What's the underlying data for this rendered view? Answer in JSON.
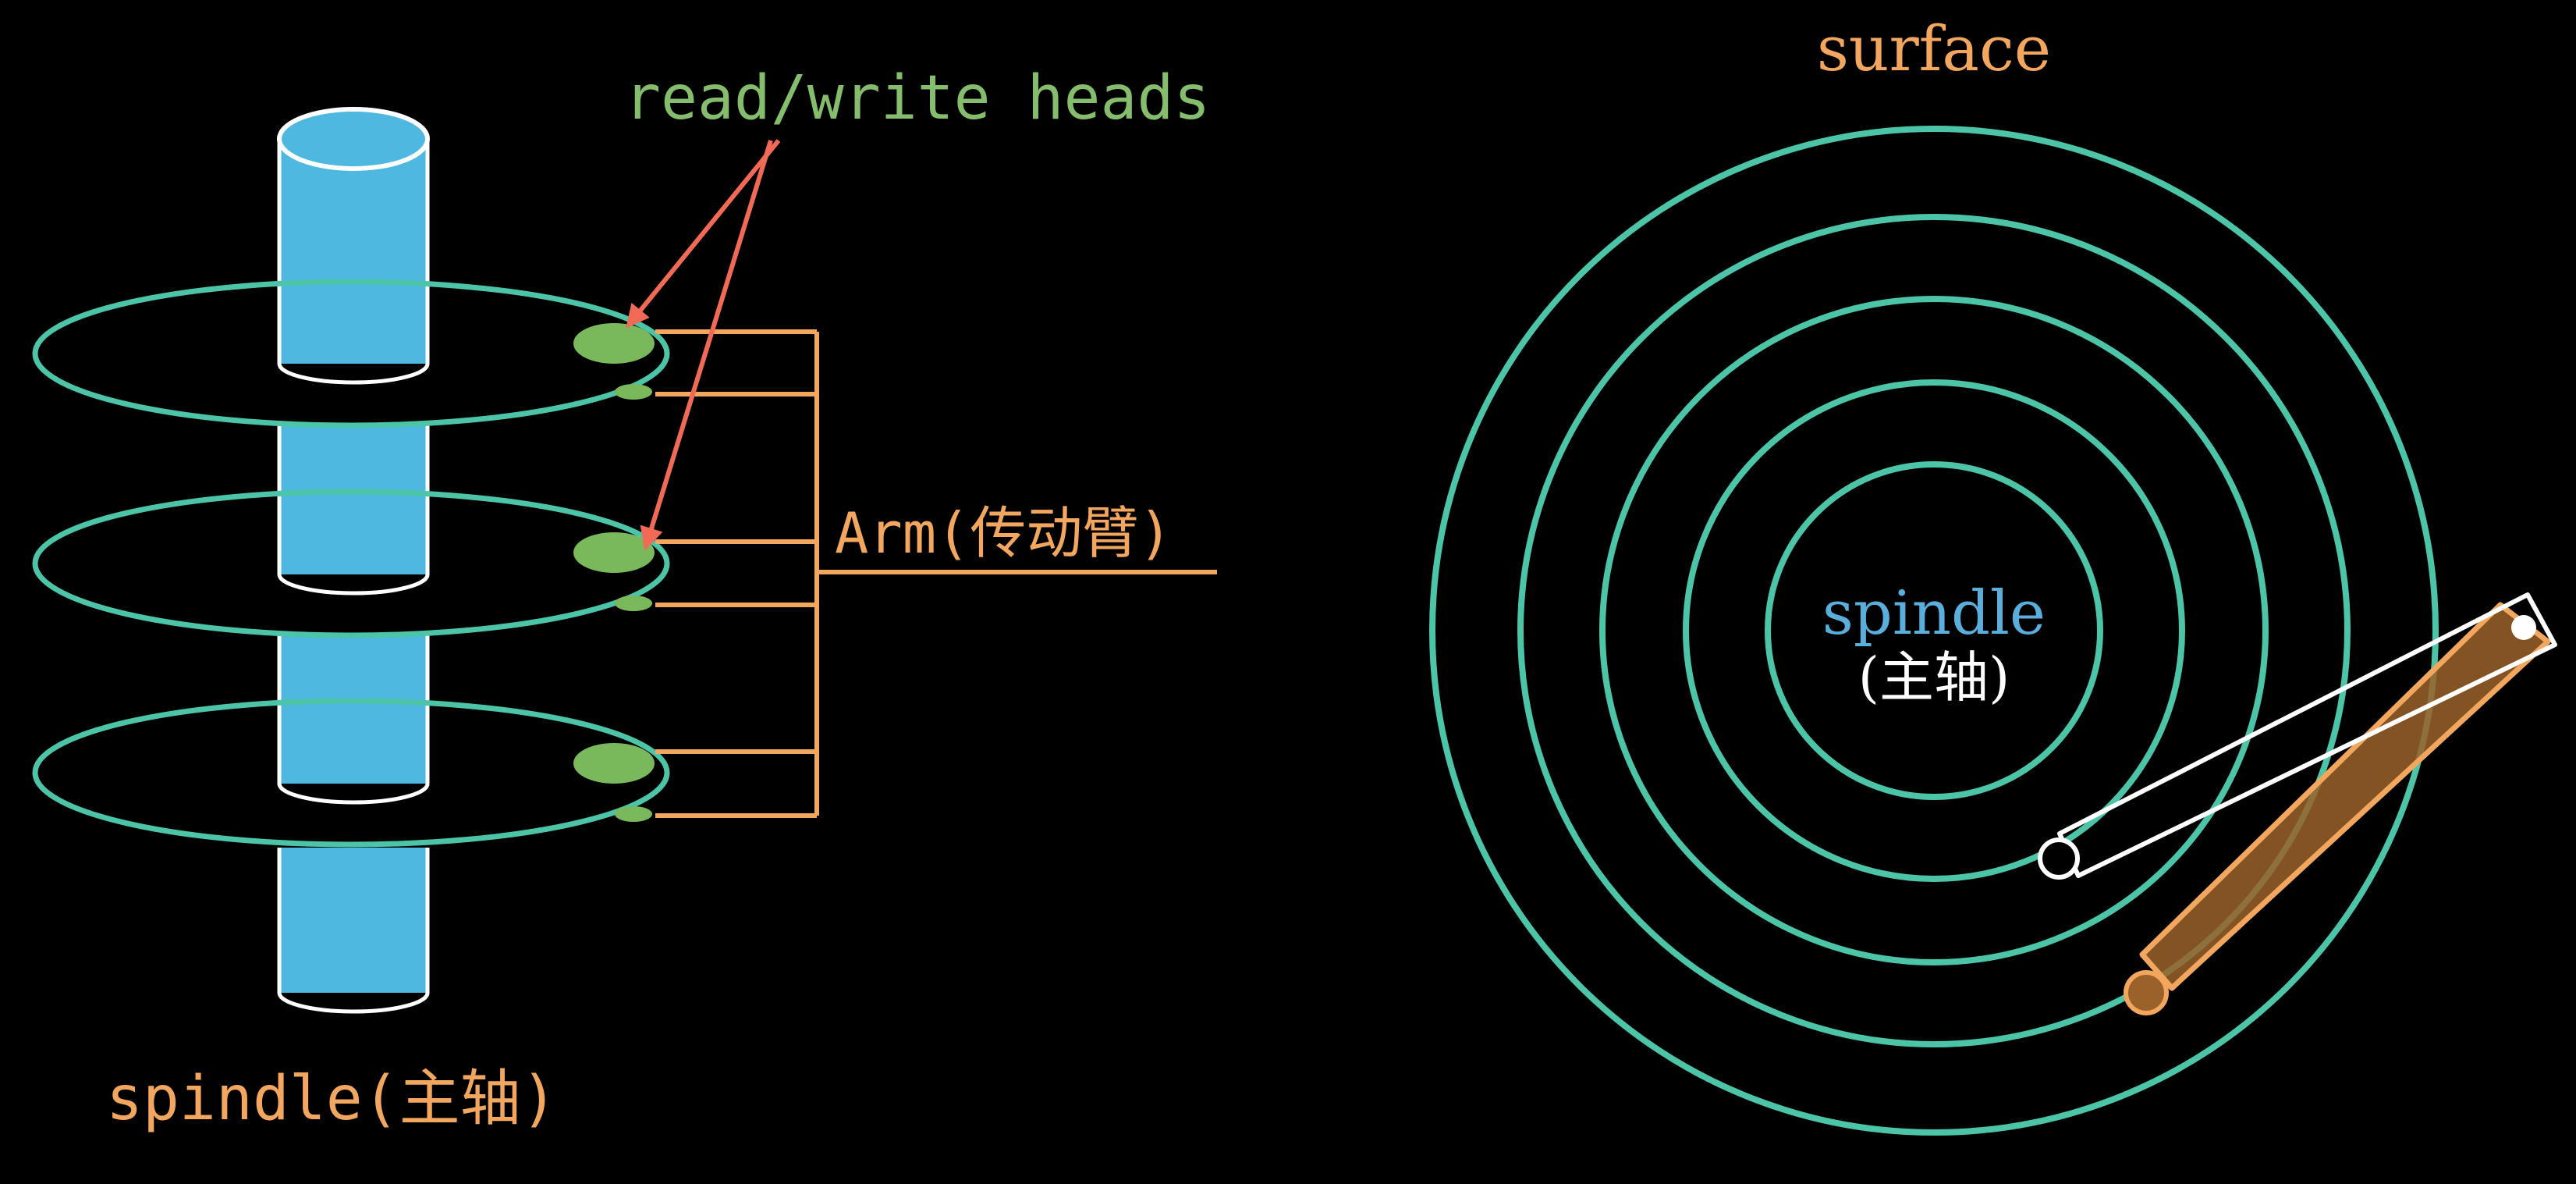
{
  "left_diagram": {
    "heads_label": "read/write heads",
    "arm_label": "Arm(传动臂)",
    "spindle_label": "spindle(主轴)"
  },
  "right_diagram": {
    "surface_label": "surface",
    "spindle_label": "spindle",
    "spindle_sublabel": "(主轴)",
    "track_count": 5
  },
  "colors": {
    "background": "#000000",
    "spindle": "#4fb8e0",
    "track": "#4cc4a8",
    "head": "#7ab85c",
    "heads_label": "#86bd6c",
    "pointer_arrow": "#f06a55",
    "arm": "#f2a65e",
    "surface_label": "#f2a65e",
    "spindle_label_right": "#5aaedc",
    "text_white": "#ffffff"
  }
}
